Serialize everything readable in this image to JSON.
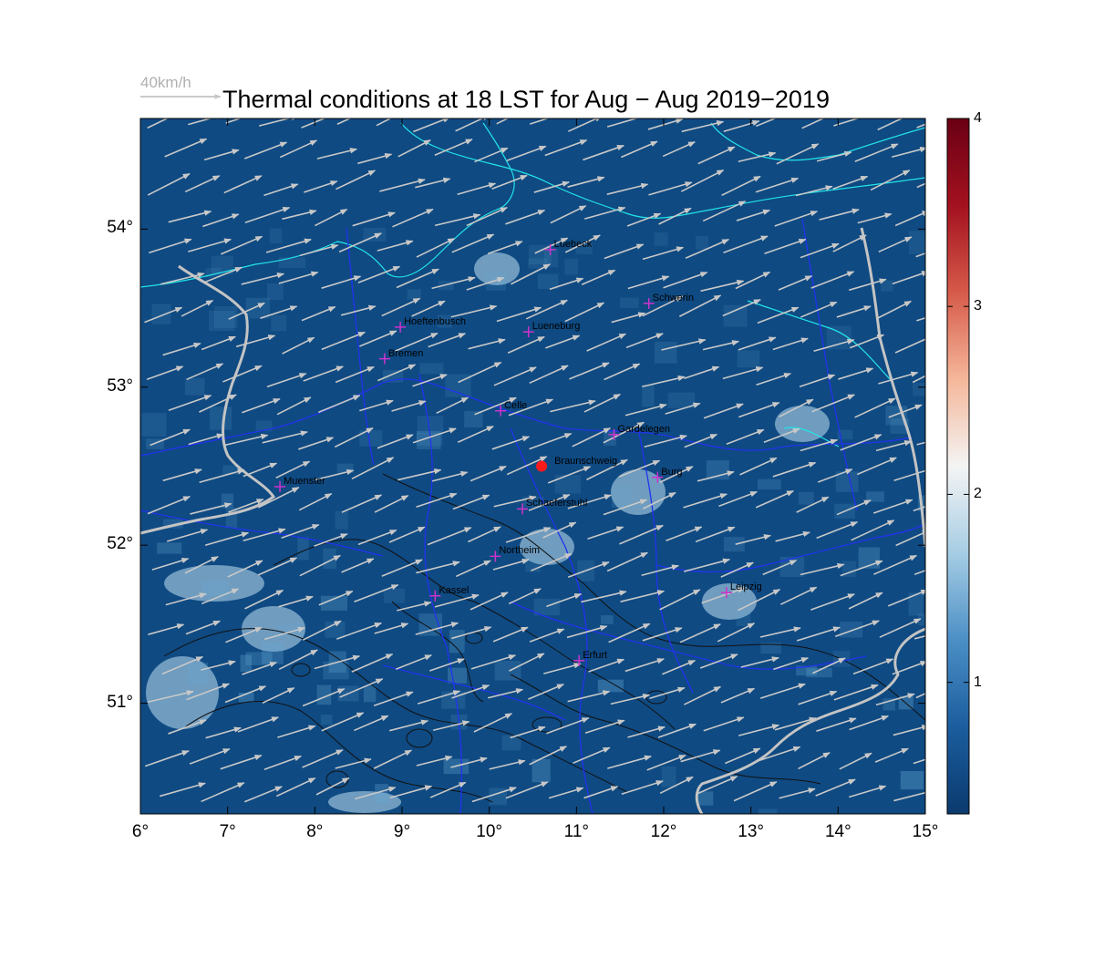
{
  "title": "Thermal conditions at 18 LST for Aug − Aug  2019−2019",
  "reference_vector": {
    "label": "40km/h",
    "speed_kmh": 40
  },
  "axes": {
    "x_ticks": [
      "6°",
      "7°",
      "8°",
      "9°",
      "10°",
      "11°",
      "12°",
      "13°",
      "14°",
      "15°"
    ],
    "y_ticks": [
      "51°",
      "52°",
      "53°",
      "54°"
    ],
    "lon_range": [
      6,
      15
    ],
    "lat_range": [
      50.3,
      54.7
    ]
  },
  "colorbar": {
    "ticks": [
      "1",
      "2",
      "3",
      "4"
    ],
    "range": [
      0.3,
      4
    ],
    "colors": [
      "#0b3a6e",
      "#1b5d9e",
      "#4b8fc6",
      "#a6cde4",
      "#f4f4f4",
      "#f5b79a",
      "#d65a4a",
      "#a3111f",
      "#6a0014"
    ]
  },
  "colors": {
    "background_field": "#0f4a82",
    "wind_arrows": "#c8c8c8",
    "coastlines": "#22e5e8",
    "state_borders": "#2233ee",
    "country_borders": "#c4c4c4",
    "terrain_contours": "#111111",
    "city_marker": "#cc33cc",
    "reference_site": "#ff1a1a"
  },
  "wind": {
    "direction_deg_from": 250,
    "typical_speed_kmh": 30
  },
  "cities": [
    {
      "name": "Luebeck",
      "lon": 10.7,
      "lat": 53.87
    },
    {
      "name": "Schwerin",
      "lon": 11.83,
      "lat": 53.53
    },
    {
      "name": "Hoeftenbusch",
      "lon": 8.98,
      "lat": 53.38
    },
    {
      "name": "Lueneburg",
      "lon": 10.45,
      "lat": 53.35
    },
    {
      "name": "Bremen",
      "lon": 8.8,
      "lat": 53.18
    },
    {
      "name": "Celle",
      "lon": 10.13,
      "lat": 52.85
    },
    {
      "name": "Gardelegen",
      "lon": 11.43,
      "lat": 52.7
    },
    {
      "name": "Braunschweig",
      "lon": 10.6,
      "lat": 52.5,
      "reference": true
    },
    {
      "name": "Burg",
      "lon": 11.93,
      "lat": 52.43
    },
    {
      "name": "Muenster",
      "lon": 7.6,
      "lat": 52.37
    },
    {
      "name": "Schaeferstuhl",
      "lon": 10.38,
      "lat": 52.23
    },
    {
      "name": "Northeim",
      "lon": 10.07,
      "lat": 51.93
    },
    {
      "name": "Kassel",
      "lon": 9.38,
      "lat": 51.68
    },
    {
      "name": "Leipzig",
      "lon": 12.72,
      "lat": 51.7
    },
    {
      "name": "Erfurt",
      "lon": 11.03,
      "lat": 51.27
    }
  ]
}
